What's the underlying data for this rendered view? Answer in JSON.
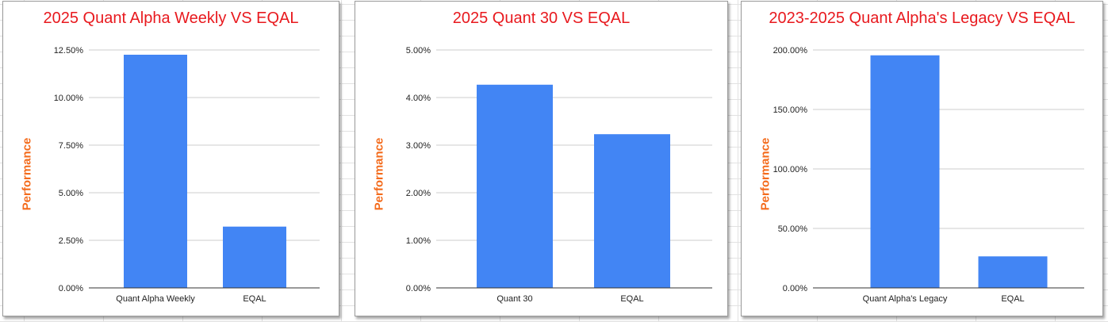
{
  "chart_data": [
    {
      "type": "bar",
      "title": "2025 Quant Alpha Weekly VS EQAL",
      "ylabel": "Performance",
      "xlabel": "",
      "categories": [
        "Quant Alpha Weekly",
        "EQAL"
      ],
      "values": [
        12.25,
        3.22
      ],
      "ylim": [
        0,
        12.5
      ],
      "yticks": [
        "0.00%",
        "2.50%",
        "5.00%",
        "7.50%",
        "10.00%",
        "12.50%"
      ],
      "bar_color": "#4285f4",
      "grid": true
    },
    {
      "type": "bar",
      "title": "2025 Quant 30 VS EQAL",
      "ylabel": "Performance",
      "xlabel": "",
      "categories": [
        "Quant 30",
        "EQAL"
      ],
      "values": [
        4.27,
        3.23
      ],
      "ylim": [
        0,
        5
      ],
      "yticks": [
        "0.00%",
        "1.00%",
        "2.00%",
        "3.00%",
        "4.00%",
        "5.00%"
      ],
      "bar_color": "#4285f4",
      "grid": true
    },
    {
      "type": "bar",
      "title": "2023-2025 Quant Alpha's Legacy VS EQAL",
      "ylabel": "Performance",
      "xlabel": "",
      "categories": [
        "Quant Alpha's Legacy",
        "EQAL"
      ],
      "values": [
        195.5,
        26.5
      ],
      "ylim": [
        0,
        200
      ],
      "yticks": [
        "0.00%",
        "50.00%",
        "100.00%",
        "150.00%",
        "200.00%"
      ],
      "bar_color": "#4285f4",
      "grid": true
    }
  ],
  "colors": {
    "title": "#e8191e",
    "axis_label": "#f46b1c",
    "bar": "#4285f4"
  }
}
